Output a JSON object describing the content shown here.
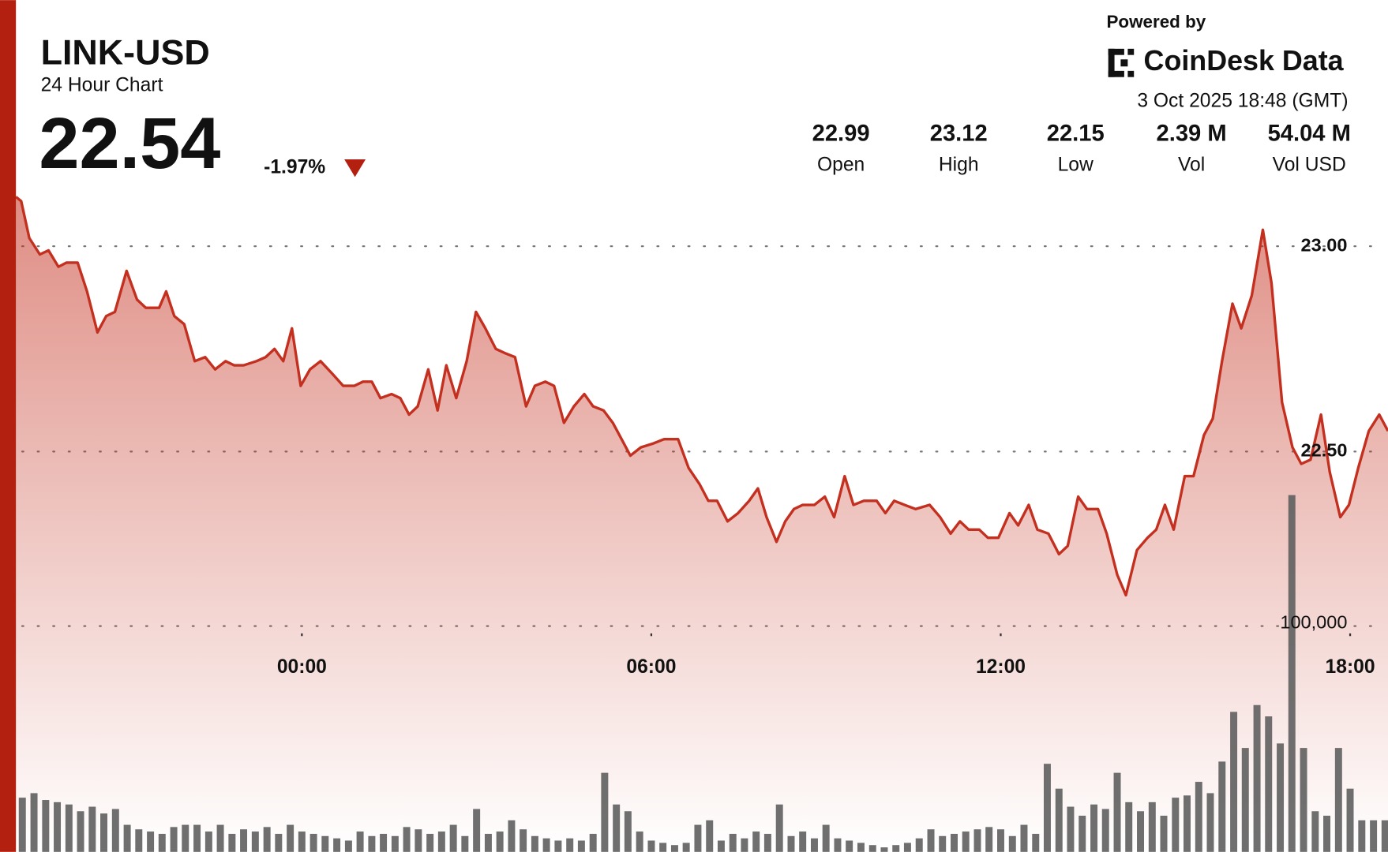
{
  "header": {
    "price": "22.54",
    "change": "-1.97%",
    "powered_by": "Powered by",
    "brand": "CoinDesk Data",
    "timestamp": "3 Oct 2025 18:48 (GMT)",
    "stats": [
      {
        "value": "22.99",
        "label": "Open"
      },
      {
        "value": "23.12",
        "label": "High"
      },
      {
        "value": "22.15",
        "label": "Low"
      },
      {
        "value": "2.39 M",
        "label": "Vol"
      },
      {
        "value": "54.04 M",
        "label": "Vol USD"
      }
    ]
  },
  "chart_data": {
    "type": "line",
    "title": "LINK-USD",
    "subtitle": "24 Hour Chart",
    "xlim": [
      -4.91,
      18.65
    ],
    "xticks": [
      {
        "value": 0,
        "label": "00:00"
      },
      {
        "value": 6,
        "label": "06:00"
      },
      {
        "value": 12,
        "label": "12:00"
      },
      {
        "value": 18,
        "label": "18:00"
      }
    ],
    "ylim": [
      21.525,
      23.175
    ],
    "yticks": [
      {
        "value": 23,
        "label": "23.00"
      },
      {
        "value": 22.5,
        "label": "22.50"
      }
    ],
    "y2lim": [
      0,
      300000
    ],
    "y2ticks": [
      {
        "value": 100000,
        "label": "100,000"
      }
    ],
    "grid": true,
    "x": [
      -4.91,
      -4.82,
      -4.68,
      -4.5,
      -4.35,
      -4.18,
      -4.04,
      -3.85,
      -3.69,
      -3.51,
      -3.36,
      -3.21,
      -3.01,
      -2.83,
      -2.68,
      -2.45,
      -2.33,
      -2.19,
      -2.02,
      -1.84,
      -1.66,
      -1.49,
      -1.31,
      -1.16,
      -1.0,
      -0.78,
      -0.62,
      -0.47,
      -0.32,
      -0.17,
      -0.02,
      0.14,
      0.32,
      0.52,
      0.71,
      0.9,
      1.05,
      1.2,
      1.35,
      1.54,
      1.69,
      1.84,
      1.99,
      2.17,
      2.33,
      2.48,
      2.65,
      2.83,
      2.99,
      3.15,
      3.33,
      3.48,
      3.66,
      3.85,
      4.0,
      4.18,
      4.33,
      4.5,
      4.67,
      4.85,
      5.0,
      5.18,
      5.34,
      5.49,
      5.64,
      5.82,
      6.04,
      6.22,
      6.46,
      6.64,
      6.83,
      6.98,
      7.13,
      7.31,
      7.49,
      7.68,
      7.83,
      7.98,
      8.15,
      8.3,
      8.45,
      8.6,
      8.8,
      8.98,
      9.14,
      9.32,
      9.47,
      9.65,
      9.87,
      10.02,
      10.17,
      10.35,
      10.54,
      10.78,
      10.96,
      11.14,
      11.3,
      11.45,
      11.63,
      11.78,
      11.96,
      12.15,
      12.3,
      12.48,
      12.63,
      12.82,
      13.0,
      13.15,
      13.33,
      13.48,
      13.67,
      13.82,
      14.0,
      14.15,
      14.34,
      14.52,
      14.67,
      14.82,
      14.97,
      15.16,
      15.31,
      15.49,
      15.64,
      15.8,
      15.98,
      16.13,
      16.31,
      16.5,
      16.65,
      16.83,
      17.01,
      17.16,
      17.32,
      17.5,
      17.65,
      17.83,
      17.98,
      18.14,
      18.32,
      18.5,
      18.65
    ],
    "series": [
      {
        "color": "#c4301f",
        "values": [
          23.12,
          23.11,
          23.02,
          22.98,
          22.99,
          22.95,
          22.96,
          22.96,
          22.89,
          22.79,
          22.83,
          22.84,
          22.94,
          22.87,
          22.85,
          22.85,
          22.89,
          22.83,
          22.81,
          22.72,
          22.73,
          22.7,
          22.72,
          22.71,
          22.71,
          22.72,
          22.73,
          22.75,
          22.72,
          22.8,
          22.66,
          22.7,
          22.72,
          22.69,
          22.66,
          22.66,
          22.67,
          22.67,
          22.63,
          22.64,
          22.63,
          22.59,
          22.61,
          22.7,
          22.6,
          22.71,
          22.63,
          22.72,
          22.84,
          22.8,
          22.75,
          22.74,
          22.73,
          22.61,
          22.66,
          22.67,
          22.66,
          22.57,
          22.61,
          22.64,
          22.61,
          22.6,
          22.57,
          22.53,
          22.49,
          22.51,
          22.52,
          22.53,
          22.53,
          22.46,
          22.42,
          22.38,
          22.38,
          22.33,
          22.35,
          22.38,
          22.41,
          22.34,
          22.28,
          22.33,
          22.36,
          22.37,
          22.37,
          22.39,
          22.34,
          22.44,
          22.37,
          22.38,
          22.38,
          22.35,
          22.38,
          22.37,
          22.36,
          22.37,
          22.34,
          22.3,
          22.33,
          22.31,
          22.31,
          22.29,
          22.29,
          22.35,
          22.32,
          22.37,
          22.31,
          22.3,
          22.25,
          22.27,
          22.39,
          22.36,
          22.36,
          22.3,
          22.2,
          22.15,
          22.26,
          22.29,
          22.31,
          22.37,
          22.31,
          22.44,
          22.44,
          22.54,
          22.58,
          22.72,
          22.86,
          22.8,
          22.88,
          23.04,
          22.91,
          22.62,
          22.51,
          22.47,
          22.48,
          22.59,
          22.45,
          22.34,
          22.37,
          22.46,
          22.55,
          22.59,
          22.55
        ]
      },
      {
        "type": "bar",
        "axis": "y2",
        "color": "#5f5f5f",
        "x": [
          -4.8,
          -4.6,
          -4.4,
          -4.2,
          -4.0,
          -3.8,
          -3.6,
          -3.4,
          -3.2,
          -3.0,
          -2.8,
          -2.6,
          -2.4,
          -2.2,
          -2.0,
          -1.8,
          -1.6,
          -1.4,
          -1.2,
          -1.0,
          -0.8,
          -0.6,
          -0.4,
          -0.2,
          0.0,
          0.2,
          0.4,
          0.6,
          0.8,
          1.0,
          1.2,
          1.4,
          1.6,
          1.8,
          2.0,
          2.2,
          2.4,
          2.6,
          2.8,
          3.0,
          3.2,
          3.4,
          3.6,
          3.8,
          4.0,
          4.2,
          4.4,
          4.6,
          4.8,
          5.0,
          5.2,
          5.4,
          5.6,
          5.8,
          6.0,
          6.2,
          6.4,
          6.6,
          6.8,
          7.0,
          7.2,
          7.4,
          7.6,
          7.8,
          8.0,
          8.2,
          8.4,
          8.6,
          8.8,
          9.0,
          9.2,
          9.4,
          9.6,
          9.8,
          10.0,
          10.2,
          10.4,
          10.6,
          10.8,
          11.0,
          11.2,
          11.4,
          11.6,
          11.8,
          12.0,
          12.2,
          12.4,
          12.6,
          12.8,
          13.0,
          13.2,
          13.4,
          13.6,
          13.8,
          14.0,
          14.2,
          14.4,
          14.6,
          14.8,
          15.0,
          15.2,
          15.4,
          15.6,
          15.8,
          16.0,
          16.2,
          16.4,
          16.6,
          16.8,
          17.0,
          17.2,
          17.4,
          17.6,
          17.8,
          18.0,
          18.2,
          18.4,
          18.6
        ],
        "values": [
          24000,
          26000,
          23000,
          22000,
          21000,
          18000,
          20000,
          17000,
          19000,
          12000,
          10000,
          9000,
          8000,
          11000,
          12000,
          12000,
          9000,
          12000,
          8000,
          10000,
          9000,
          11000,
          8000,
          12000,
          9000,
          8000,
          7000,
          6000,
          5000,
          9000,
          7000,
          8000,
          7000,
          11000,
          10000,
          8000,
          9000,
          12000,
          7000,
          19000,
          8000,
          9000,
          14000,
          10000,
          7000,
          6000,
          5000,
          6000,
          5000,
          8000,
          35000,
          21000,
          18000,
          9000,
          5000,
          4000,
          3000,
          4000,
          12000,
          14000,
          5000,
          8000,
          6000,
          9000,
          8000,
          21000,
          7000,
          9000,
          6000,
          12000,
          6000,
          5000,
          4000,
          3000,
          2000,
          3000,
          4000,
          6000,
          10000,
          7000,
          8000,
          9000,
          10000,
          11000,
          10000,
          7000,
          12000,
          8000,
          39000,
          28000,
          20000,
          16000,
          21000,
          19000,
          35000,
          22000,
          18000,
          22000,
          16000,
          24000,
          25000,
          31000,
          26000,
          40000,
          62000,
          46000,
          65000,
          60000,
          48000,
          158000,
          46000,
          18000,
          16000,
          46000,
          28000,
          14000,
          14000,
          14000
        ]
      }
    ]
  }
}
